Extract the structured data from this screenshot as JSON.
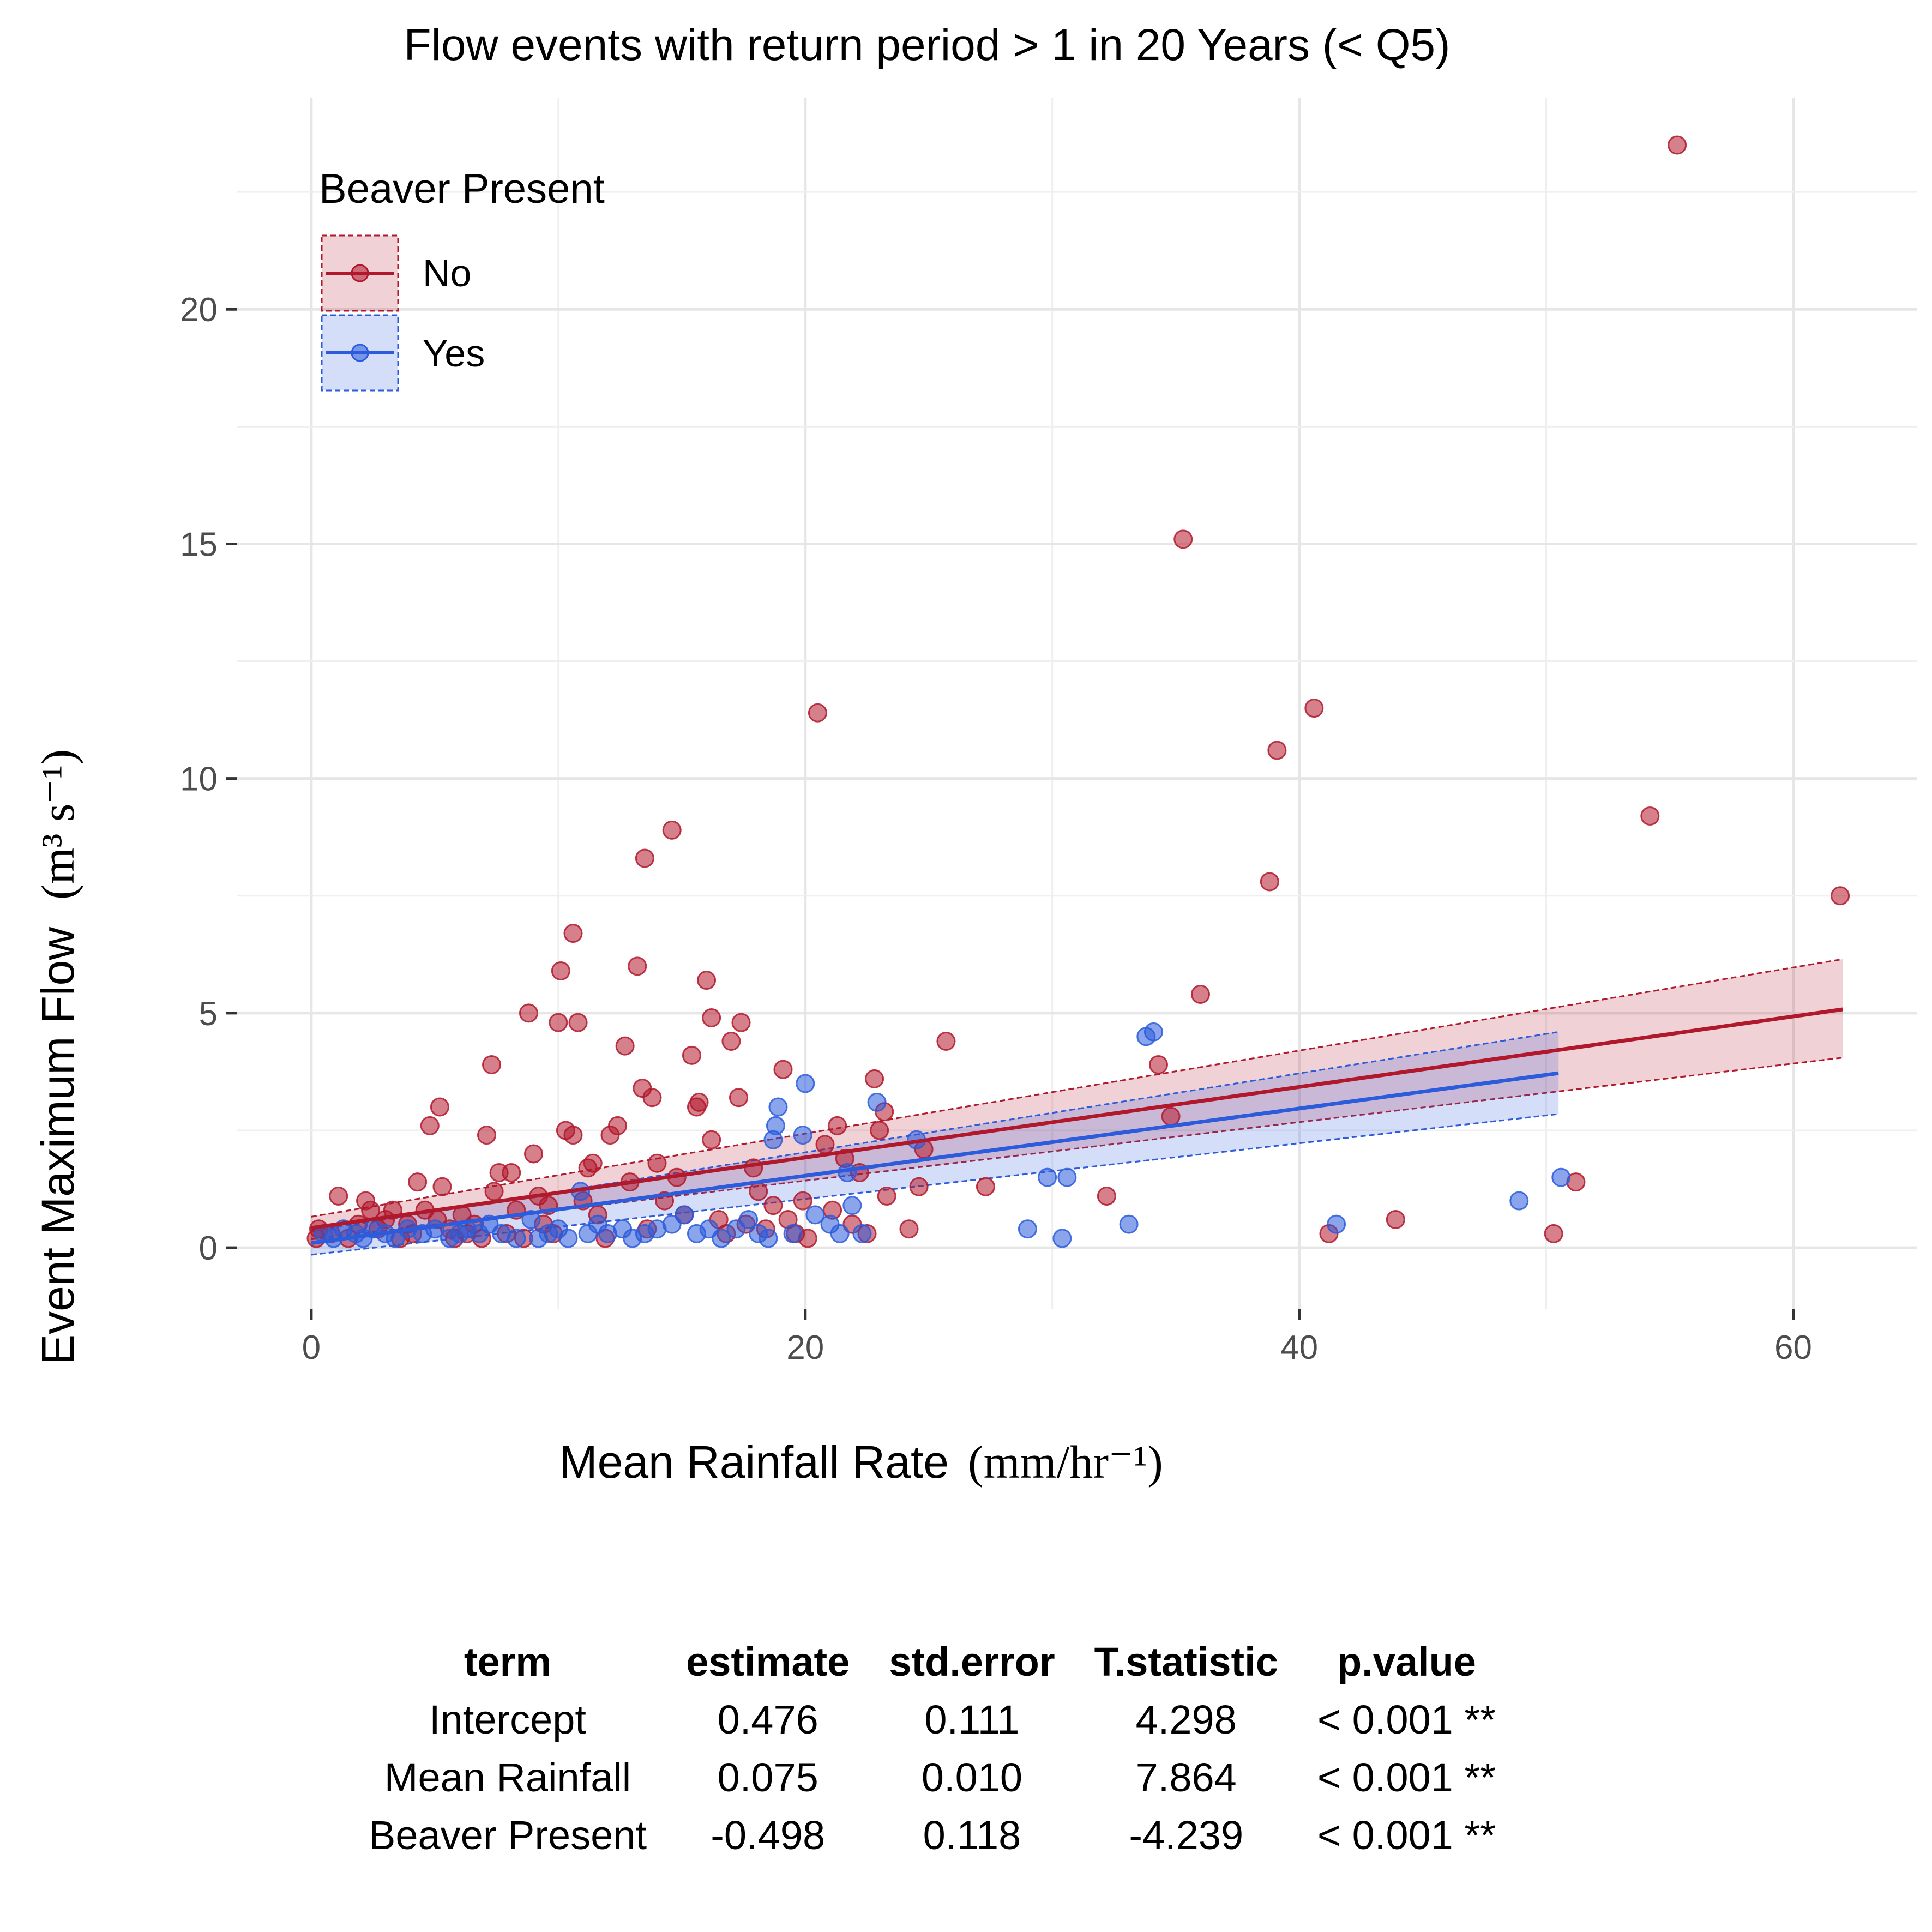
{
  "chart_data": {
    "type": "scatter",
    "title": "Flow events with return period > 1 in 20 Years (< Q5)",
    "xlabel": "Mean Rainfall Rate",
    "xlabel_unit": "(mm/hr⁻¹)",
    "ylabel": "Event Maximum Flow",
    "ylabel_unit": "(m³ s⁻¹)",
    "xlim": [
      -3,
      65
    ],
    "ylim": [
      -1.3,
      24.5
    ],
    "x_ticks": [
      0,
      20,
      40,
      60
    ],
    "y_ticks": [
      0,
      5,
      10,
      15,
      20
    ],
    "x_tick_labels": [
      "0",
      "20",
      "40",
      "60"
    ],
    "y_tick_labels": [
      "0",
      "5",
      "10",
      "15",
      "20"
    ],
    "grid": true,
    "legend": {
      "title": "Beaver Present",
      "position": "top-left",
      "entries": [
        "No",
        "Yes"
      ]
    },
    "series": [
      {
        "name": "No",
        "color": "#b2182b",
        "fit": {
          "x0": 0,
          "y0": 0.42,
          "x1": 62,
          "y1": 5.08,
          "ci_low0": 0.18,
          "ci_high0": 0.66,
          "ci_low1": 4.05,
          "ci_high1": 6.15
        },
        "points": [
          [
            0.2,
            0.2
          ],
          [
            0.3,
            0.4
          ],
          [
            0.8,
            0.3
          ],
          [
            1.1,
            1.1
          ],
          [
            1.5,
            0.2
          ],
          [
            1.9,
            0.5
          ],
          [
            2.2,
            1.0
          ],
          [
            2.4,
            0.8
          ],
          [
            2.7,
            0.4
          ],
          [
            3.0,
            0.6
          ],
          [
            3.3,
            0.8
          ],
          [
            3.6,
            0.2
          ],
          [
            3.9,
            0.5
          ],
          [
            4.1,
            0.3
          ],
          [
            4.3,
            1.4
          ],
          [
            4.6,
            0.8
          ],
          [
            4.8,
            2.6
          ],
          [
            5.1,
            0.6
          ],
          [
            5.2,
            3.0
          ],
          [
            5.3,
            1.3
          ],
          [
            5.6,
            0.4
          ],
          [
            5.8,
            0.2
          ],
          [
            6.1,
            0.7
          ],
          [
            6.3,
            0.3
          ],
          [
            6.6,
            0.5
          ],
          [
            6.9,
            0.2
          ],
          [
            7.1,
            2.4
          ],
          [
            7.3,
            3.9
          ],
          [
            7.4,
            1.2
          ],
          [
            7.6,
            1.6
          ],
          [
            7.9,
            0.3
          ],
          [
            8.1,
            1.6
          ],
          [
            8.3,
            0.8
          ],
          [
            8.6,
            0.2
          ],
          [
            8.8,
            5.0
          ],
          [
            9.0,
            2.0
          ],
          [
            9.2,
            1.1
          ],
          [
            9.4,
            0.5
          ],
          [
            9.6,
            0.9
          ],
          [
            9.8,
            0.3
          ],
          [
            10.0,
            4.8
          ],
          [
            10.1,
            5.9
          ],
          [
            10.3,
            2.5
          ],
          [
            10.6,
            6.7
          ],
          [
            10.6,
            2.4
          ],
          [
            10.8,
            4.8
          ],
          [
            11.0,
            1.0
          ],
          [
            11.2,
            1.7
          ],
          [
            11.4,
            1.8
          ],
          [
            11.6,
            0.7
          ],
          [
            11.9,
            0.2
          ],
          [
            12.1,
            2.4
          ],
          [
            12.4,
            2.6
          ],
          [
            12.7,
            4.3
          ],
          [
            12.9,
            1.4
          ],
          [
            13.2,
            6.0
          ],
          [
            13.4,
            3.4
          ],
          [
            13.5,
            8.3
          ],
          [
            13.6,
            0.4
          ],
          [
            13.8,
            3.2
          ],
          [
            14.0,
            1.8
          ],
          [
            14.3,
            1.0
          ],
          [
            14.6,
            8.9
          ],
          [
            14.8,
            1.5
          ],
          [
            15.1,
            0.7
          ],
          [
            15.4,
            4.1
          ],
          [
            15.6,
            3.0
          ],
          [
            15.7,
            3.1
          ],
          [
            16.0,
            5.7
          ],
          [
            16.2,
            2.3
          ],
          [
            16.2,
            4.9
          ],
          [
            16.5,
            0.6
          ],
          [
            16.8,
            0.3
          ],
          [
            17.0,
            4.4
          ],
          [
            17.3,
            3.2
          ],
          [
            17.4,
            4.8
          ],
          [
            17.6,
            0.5
          ],
          [
            17.9,
            1.7
          ],
          [
            18.1,
            1.2
          ],
          [
            18.4,
            0.4
          ],
          [
            18.7,
            0.9
          ],
          [
            19.1,
            3.8
          ],
          [
            19.3,
            0.6
          ],
          [
            19.6,
            0.3
          ],
          [
            19.9,
            1.0
          ],
          [
            20.1,
            0.2
          ],
          [
            20.5,
            11.4
          ],
          [
            20.8,
            2.2
          ],
          [
            21.1,
            0.8
          ],
          [
            21.3,
            2.6
          ],
          [
            21.6,
            1.9
          ],
          [
            21.9,
            0.5
          ],
          [
            22.2,
            1.6
          ],
          [
            22.5,
            0.3
          ],
          [
            22.8,
            3.6
          ],
          [
            23.0,
            2.5
          ],
          [
            23.2,
            2.9
          ],
          [
            23.3,
            1.1
          ],
          [
            24.2,
            0.4
          ],
          [
            24.6,
            1.3
          ],
          [
            24.8,
            2.1
          ],
          [
            25.7,
            4.4
          ],
          [
            27.3,
            1.3
          ],
          [
            32.2,
            1.1
          ],
          [
            34.3,
            3.9
          ],
          [
            34.8,
            2.8
          ],
          [
            35.3,
            15.1
          ],
          [
            36.0,
            5.4
          ],
          [
            38.8,
            7.8
          ],
          [
            39.1,
            10.6
          ],
          [
            40.6,
            11.5
          ],
          [
            41.2,
            0.3
          ],
          [
            43.9,
            0.6
          ],
          [
            50.3,
            0.3
          ],
          [
            51.2,
            1.4
          ],
          [
            54.2,
            9.2
          ],
          [
            55.3,
            23.5
          ],
          [
            61.9,
            7.5
          ]
        ]
      },
      {
        "name": "Yes",
        "color": "#2c5bdc",
        "fit": {
          "x0": 0,
          "y0": 0.1,
          "x1": 50.5,
          "y1": 3.72,
          "ci_low0": -0.15,
          "ci_high0": 0.35,
          "ci_low1": 2.85,
          "ci_high1": 4.6
        },
        "points": [
          [
            0.5,
            0.3
          ],
          [
            0.9,
            0.2
          ],
          [
            1.3,
            0.4
          ],
          [
            1.8,
            0.3
          ],
          [
            2.1,
            0.2
          ],
          [
            2.5,
            0.4
          ],
          [
            3.0,
            0.3
          ],
          [
            3.4,
            0.2
          ],
          [
            3.9,
            0.4
          ],
          [
            4.5,
            0.3
          ],
          [
            5.0,
            0.4
          ],
          [
            5.6,
            0.2
          ],
          [
            6.0,
            0.3
          ],
          [
            6.3,
            0.4
          ],
          [
            6.8,
            0.3
          ],
          [
            7.2,
            0.5
          ],
          [
            7.7,
            0.3
          ],
          [
            8.3,
            0.2
          ],
          [
            8.9,
            0.6
          ],
          [
            9.2,
            0.2
          ],
          [
            9.6,
            0.3
          ],
          [
            10.0,
            0.4
          ],
          [
            10.4,
            0.2
          ],
          [
            10.9,
            1.2
          ],
          [
            11.2,
            0.3
          ],
          [
            11.6,
            0.5
          ],
          [
            12.0,
            0.3
          ],
          [
            12.6,
            0.4
          ],
          [
            13.0,
            0.2
          ],
          [
            13.5,
            0.3
          ],
          [
            14.0,
            0.4
          ],
          [
            14.6,
            0.5
          ],
          [
            15.1,
            0.7
          ],
          [
            15.6,
            0.3
          ],
          [
            16.1,
            0.4
          ],
          [
            16.6,
            0.2
          ],
          [
            17.2,
            0.4
          ],
          [
            17.7,
            0.6
          ],
          [
            18.1,
            0.3
          ],
          [
            18.5,
            0.2
          ],
          [
            18.7,
            2.3
          ],
          [
            18.8,
            2.6
          ],
          [
            18.9,
            3.0
          ],
          [
            19.5,
            0.3
          ],
          [
            19.9,
            2.4
          ],
          [
            20.0,
            3.5
          ],
          [
            20.4,
            0.7
          ],
          [
            21.0,
            0.5
          ],
          [
            21.4,
            0.3
          ],
          [
            21.7,
            1.6
          ],
          [
            21.9,
            0.9
          ],
          [
            22.3,
            0.3
          ],
          [
            22.9,
            3.1
          ],
          [
            24.5,
            2.3
          ],
          [
            29.0,
            0.4
          ],
          [
            29.8,
            1.5
          ],
          [
            30.4,
            0.2
          ],
          [
            30.6,
            1.5
          ],
          [
            33.1,
            0.5
          ],
          [
            33.8,
            4.5
          ],
          [
            34.1,
            4.6
          ],
          [
            41.5,
            0.5
          ],
          [
            48.9,
            1.0
          ],
          [
            50.6,
            1.5
          ]
        ]
      }
    ]
  },
  "table": {
    "headers": [
      "term",
      "estimate",
      "std.error",
      "T.statistic",
      "p.value"
    ],
    "rows": [
      [
        "Intercept",
        "0.476",
        "0.111",
        "4.298",
        "< 0.001 **"
      ],
      [
        "Mean Rainfall",
        "0.075",
        "0.010",
        "7.864",
        "< 0.001 **"
      ],
      [
        "Beaver Present",
        "-0.498",
        "0.118",
        "-4.239",
        "< 0.001 **"
      ]
    ]
  }
}
